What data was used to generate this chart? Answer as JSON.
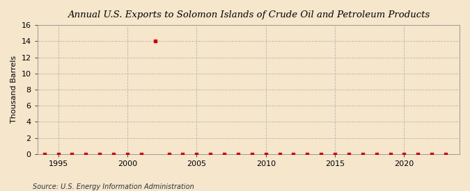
{
  "title": "Annual U.S. Exports to Solomon Islands of Crude Oil and Petroleum Products",
  "ylabel": "Thousand Barrels",
  "source": "Source: U.S. Energy Information Administration",
  "background_color": "#f5e6cc",
  "plot_bg_color": "#f5e6cc",
  "marker_color": "#cc0000",
  "grid_color": "#aaaaaa",
  "years": [
    1994,
    1995,
    1996,
    1997,
    1998,
    1999,
    2000,
    2001,
    2002,
    2003,
    2004,
    2005,
    2006,
    2007,
    2008,
    2009,
    2010,
    2011,
    2012,
    2013,
    2014,
    2015,
    2016,
    2017,
    2018,
    2019,
    2020,
    2021,
    2022,
    2023
  ],
  "values": [
    0,
    0,
    0,
    0,
    0,
    0,
    0,
    0,
    14,
    0,
    0,
    0,
    0,
    0,
    0,
    0,
    0,
    0,
    0,
    0,
    0,
    0,
    0,
    0,
    0,
    0,
    0,
    0,
    0,
    0
  ],
  "xlim": [
    1993.5,
    2024
  ],
  "ylim": [
    0,
    16
  ],
  "yticks": [
    0,
    2,
    4,
    6,
    8,
    10,
    12,
    14,
    16
  ],
  "xticks": [
    1995,
    2000,
    2005,
    2010,
    2015,
    2020
  ]
}
